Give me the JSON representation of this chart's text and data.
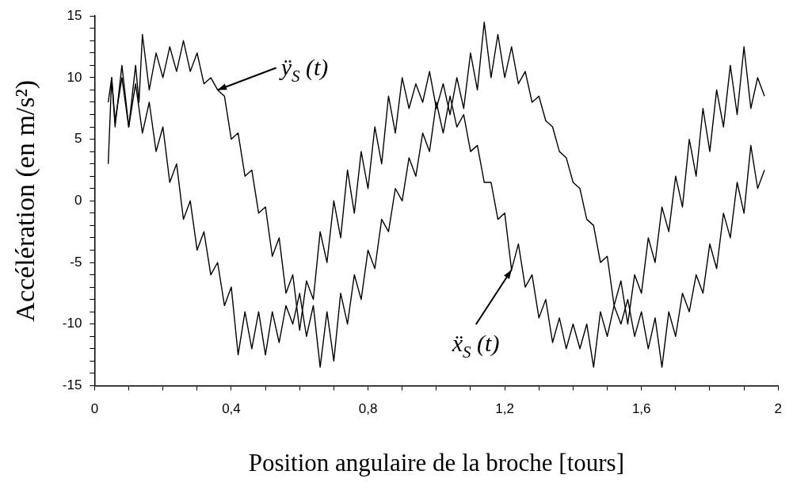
{
  "chart_data": {
    "type": "line",
    "xlabel": "Position angulaire de la broche [tours]",
    "ylabel": "Accélération (en m/s²)",
    "xlim": [
      0,
      2
    ],
    "ylim": [
      -15,
      15
    ],
    "xticks": [
      0,
      {
        "value": 0.1,
        "label": null
      },
      {
        "value": 0.2,
        "label": null
      },
      {
        "value": 0.3,
        "label": null
      },
      {
        "value": 0.4,
        "label": "0,4"
      },
      {
        "value": 0.5,
        "label": null
      },
      {
        "value": 0.6,
        "label": null
      },
      {
        "value": 0.7,
        "label": null
      },
      {
        "value": 0.8,
        "label": "0,8"
      },
      {
        "value": 0.9,
        "label": null
      },
      {
        "value": 1,
        "label": null
      },
      {
        "value": 1.1,
        "label": null
      },
      {
        "value": 1.2,
        "label": "1,2"
      },
      {
        "value": 1.3,
        "label": null
      },
      {
        "value": 1.4,
        "label": null
      },
      {
        "value": 1.5,
        "label": null
      },
      {
        "value": 1.6,
        "label": "1,6"
      },
      {
        "value": 1.7,
        "label": null
      },
      {
        "value": 1.8,
        "label": null
      },
      {
        "value": 1.9,
        "label": null
      },
      2
    ],
    "yticks": [
      -15,
      {
        "value": -14,
        "label": null
      },
      {
        "value": -13,
        "label": null
      },
      {
        "value": -12,
        "label": null
      },
      {
        "value": -11,
        "label": null
      },
      -10,
      {
        "value": -9,
        "label": null
      },
      {
        "value": -8,
        "label": null
      },
      {
        "value": -7,
        "label": null
      },
      {
        "value": -6,
        "label": null
      },
      -5,
      {
        "value": -4,
        "label": null
      },
      {
        "value": -3,
        "label": null
      },
      {
        "value": -2,
        "label": null
      },
      {
        "value": -1,
        "label": null
      },
      0,
      {
        "value": 1,
        "label": null
      },
      {
        "value": 2,
        "label": null
      },
      {
        "value": 3,
        "label": null
      },
      {
        "value": 4,
        "label": null
      },
      5,
      {
        "value": 6,
        "label": null
      },
      {
        "value": 7,
        "label": null
      },
      {
        "value": 8,
        "label": null
      },
      {
        "value": 9,
        "label": null
      },
      10,
      {
        "value": 11,
        "label": null
      },
      {
        "value": 12,
        "label": null
      },
      {
        "value": 13,
        "label": null
      },
      {
        "value": 14,
        "label": null
      },
      15
    ],
    "grid": false,
    "legend": false,
    "marker": "none",
    "line_style": "solid",
    "annotations": [
      {
        "text": "ÿ$_{S}$ (t)",
        "x": 0.36,
        "y": 9
      },
      {
        "text": "ẍ$_{S}$ (t)",
        "x": 1.22,
        "y": -5.6
      }
    ],
    "series": [
      {
        "color": "#000000",
        "x": [
          0.04,
          0.05,
          0.06,
          0.08,
          0.1,
          0.12,
          0.13,
          0.14,
          0.16,
          0.18,
          0.2,
          0.22,
          0.24,
          0.26,
          0.28,
          0.3,
          0.32,
          0.34,
          0.36,
          0.38,
          0.4,
          0.42,
          0.44,
          0.46,
          0.48,
          0.5,
          0.52,
          0.54,
          0.56,
          0.58,
          0.6,
          0.62,
          0.64,
          0.66,
          0.68,
          0.7,
          0.72,
          0.74,
          0.76,
          0.78,
          0.8,
          0.82,
          0.84,
          0.86,
          0.88,
          0.9,
          0.92,
          0.94,
          0.96,
          0.98,
          1,
          1.02,
          1.04,
          1.06,
          1.08,
          1.1,
          1.12,
          1.14,
          1.16,
          1.18,
          1.2,
          1.22,
          1.24,
          1.26,
          1.28,
          1.3,
          1.32,
          1.34,
          1.36,
          1.38,
          1.4,
          1.42,
          1.44,
          1.46,
          1.48,
          1.5,
          1.52,
          1.54,
          1.56,
          1.58,
          1.6,
          1.62,
          1.64,
          1.66,
          1.68,
          1.7,
          1.72,
          1.74,
          1.76,
          1.78,
          1.8,
          1.82,
          1.84,
          1.86,
          1.88,
          1.9,
          1.92,
          1.94,
          1.96
        ],
        "values": [
          3,
          10,
          6,
          11,
          6,
          11,
          8,
          13.5,
          9,
          12,
          10,
          12.5,
          10.5,
          13,
          10.5,
          12,
          9.5,
          10,
          9,
          8.5,
          5,
          5.5,
          2,
          2.5,
          -1,
          -0.5,
          -4.5,
          -3,
          -7.5,
          -6,
          -10.5,
          -6.5,
          -8,
          -2.5,
          -5,
          0,
          -3,
          2.5,
          -1,
          4,
          1,
          6,
          3,
          8.5,
          5.5,
          10,
          7.5,
          9.5,
          8,
          10.5,
          7.5,
          9.5,
          7,
          10,
          7.5,
          12,
          9,
          14.5,
          10,
          13.5,
          10,
          12.5,
          9.5,
          10.5,
          8,
          8.5,
          6.5,
          6,
          4,
          3.5,
          1.5,
          1,
          -1.5,
          -2,
          -5,
          -4.5,
          -8.5,
          -6.5,
          -10,
          -6,
          -7.5,
          -3,
          -5,
          -0.5,
          -2.5,
          2,
          -0.5,
          5,
          2,
          7.5,
          4,
          9,
          6,
          11,
          7,
          12.5,
          7.5,
          10,
          8.5
        ]
      },
      {
        "color": "#000000",
        "x": [
          0.04,
          0.05,
          0.06,
          0.08,
          0.1,
          0.12,
          0.14,
          0.16,
          0.18,
          0.2,
          0.22,
          0.24,
          0.26,
          0.28,
          0.3,
          0.32,
          0.34,
          0.36,
          0.38,
          0.4,
          0.42,
          0.44,
          0.46,
          0.48,
          0.5,
          0.52,
          0.54,
          0.56,
          0.58,
          0.6,
          0.62,
          0.64,
          0.66,
          0.68,
          0.7,
          0.72,
          0.74,
          0.76,
          0.78,
          0.8,
          0.82,
          0.84,
          0.86,
          0.88,
          0.9,
          0.92,
          0.94,
          0.96,
          0.98,
          1,
          1.02,
          1.04,
          1.06,
          1.08,
          1.1,
          1.12,
          1.14,
          1.16,
          1.18,
          1.2,
          1.22,
          1.24,
          1.26,
          1.28,
          1.3,
          1.32,
          1.34,
          1.36,
          1.38,
          1.4,
          1.42,
          1.44,
          1.46,
          1.48,
          1.5,
          1.52,
          1.54,
          1.56,
          1.58,
          1.6,
          1.62,
          1.64,
          1.66,
          1.68,
          1.7,
          1.72,
          1.74,
          1.76,
          1.78,
          1.8,
          1.82,
          1.84,
          1.86,
          1.88,
          1.9,
          1.92,
          1.94,
          1.96
        ],
        "values": [
          8,
          10,
          6.5,
          10,
          6,
          9.5,
          5.5,
          8,
          4,
          6,
          1.5,
          3,
          -1.5,
          0,
          -4,
          -2.5,
          -6,
          -5,
          -8.5,
          -7,
          -12.5,
          -9,
          -12,
          -9,
          -12.5,
          -9,
          -11.5,
          -8.5,
          -10,
          -7.5,
          -11,
          -8.5,
          -13.5,
          -9,
          -13,
          -7.5,
          -10,
          -6,
          -8,
          -4,
          -5.5,
          -1.5,
          -2.5,
          1,
          0,
          3.5,
          2,
          5.5,
          4,
          8,
          5.5,
          8.5,
          6,
          7,
          4,
          4.5,
          1.5,
          1.5,
          -1.5,
          -1,
          -5.6,
          -3.5,
          -7,
          -6,
          -9.5,
          -8,
          -11.5,
          -9.5,
          -12,
          -10,
          -12,
          -10,
          -13.5,
          -9,
          -11,
          -8.5,
          -10,
          -8,
          -11,
          -9,
          -12,
          -9.5,
          -13.5,
          -9,
          -11,
          -7.5,
          -9,
          -6,
          -7.5,
          -3.5,
          -5.5,
          -1,
          -3,
          1.5,
          -1,
          4.5,
          1,
          2.5
        ]
      }
    ]
  }
}
